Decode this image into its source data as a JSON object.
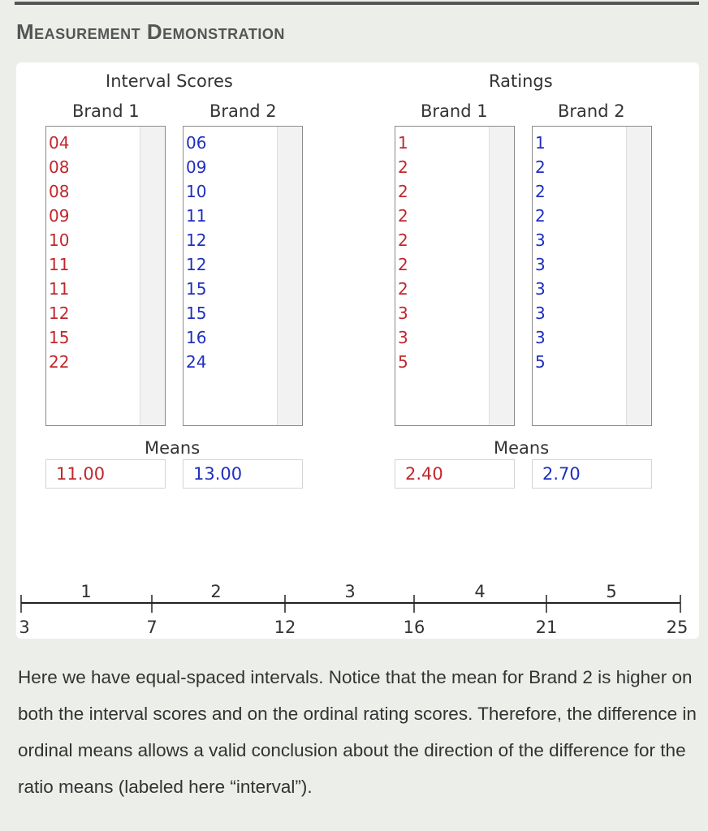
{
  "heading": "Measurement Demonstration",
  "interval": {
    "title": "Interval Scores",
    "brand1": {
      "label": "Brand 1",
      "values": [
        "04",
        "08",
        "08",
        "09",
        "10",
        "11",
        "11",
        "12",
        "15",
        "22"
      ],
      "mean": "11.00"
    },
    "brand2": {
      "label": "Brand 2",
      "values": [
        "06",
        "09",
        "10",
        "11",
        "12",
        "12",
        "15",
        "15",
        "16",
        "24"
      ],
      "mean": "13.00"
    }
  },
  "ratings": {
    "title": "Ratings",
    "brand1": {
      "label": "Brand 1",
      "values": [
        "1",
        "2",
        "2",
        "2",
        "2",
        "2",
        "2",
        "3",
        "3",
        "5"
      ],
      "mean": "2.40"
    },
    "brand2": {
      "label": "Brand 2",
      "values": [
        "1",
        "2",
        "2",
        "2",
        "3",
        "3",
        "3",
        "3",
        "3",
        "5"
      ],
      "mean": "2.70"
    }
  },
  "means_label": "Means",
  "scale": {
    "bins": [
      "1",
      "2",
      "3",
      "4",
      "5"
    ],
    "ticks": [
      "3",
      "7",
      "12",
      "16",
      "21",
      "25"
    ]
  },
  "colors": {
    "brand1": "#c1272d",
    "brand2": "#1f2fbf"
  },
  "description": "Here we have equal-spaced intervals. Notice that the mean for Brand 2 is higher on both the interval scores and on the ordinal rating scores. Therefore, the difference in ordinal means allows a valid conclusion about the direction of the difference for the ratio means (labeled here “interval”)."
}
